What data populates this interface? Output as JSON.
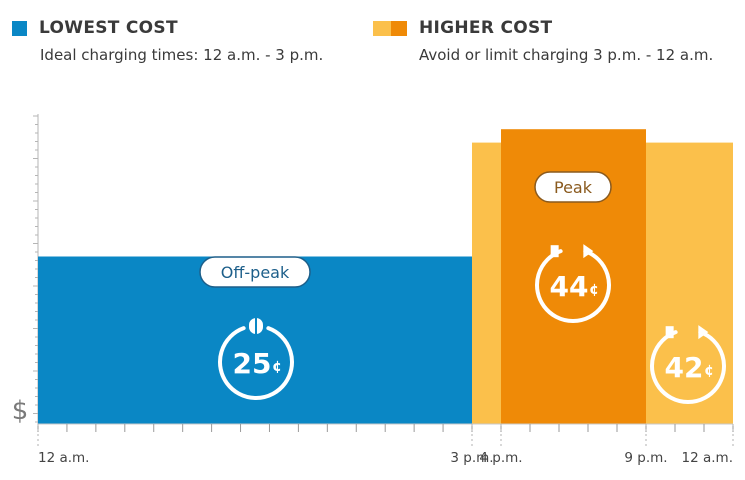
{
  "legend": {
    "lowest": {
      "title": "LOWEST COST",
      "subtitle": "Ideal charging times: 12 a.m. - 3 p.m.",
      "color": "#0a87c5"
    },
    "higher": {
      "title": "HIGHER COST",
      "subtitle": "Avoid or limit charging 3 p.m. - 12 a.m.",
      "color_light": "#fbc04b",
      "color_dark": "#ef8a07"
    }
  },
  "chart_data": {
    "type": "bar",
    "ylabel": "$",
    "xlim": [
      0,
      24
    ],
    "x_ticks": [
      {
        "hour": 0,
        "label": "12 a.m."
      },
      {
        "hour": 15,
        "label": "3 p.m."
      },
      {
        "hour": 16,
        "label": "4 p.m."
      },
      {
        "hour": 21,
        "label": "9 p.m."
      },
      {
        "hour": 24,
        "label": "12 a.m."
      }
    ],
    "segments": [
      {
        "start_hour": 0,
        "end_hour": 15,
        "value": 25,
        "value_label": "25",
        "unit": "¢",
        "period": "Off-peak",
        "color": "#0a87c5"
      },
      {
        "start_hour": 15,
        "end_hour": 16,
        "value": 42,
        "value_label": "",
        "unit": "",
        "period": "",
        "color": "#fbc04b"
      },
      {
        "start_hour": 16,
        "end_hour": 21,
        "value": 44,
        "value_label": "44",
        "unit": "¢",
        "period": "Peak",
        "color": "#ef8a07"
      },
      {
        "start_hour": 21,
        "end_hour": 24,
        "value": 42,
        "value_label": "42",
        "unit": "¢",
        "period": "",
        "color": "#fbc04b"
      }
    ],
    "pill_colors": {
      "Off-peak": "#1d5f8a",
      "Peak": "#8a5a1e"
    }
  }
}
